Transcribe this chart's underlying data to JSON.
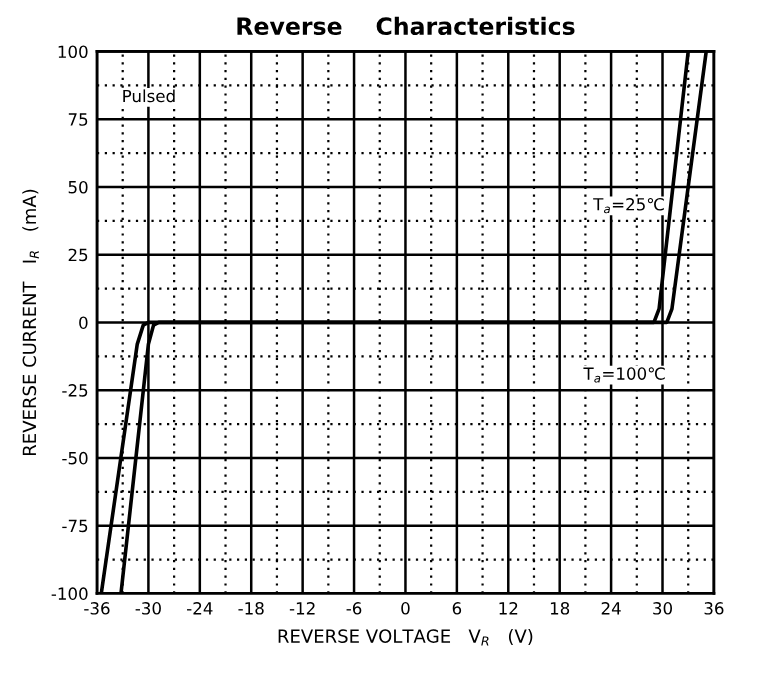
{
  "chart_data": {
    "type": "line",
    "title": "Reverse    Characteristics",
    "xlabel": "REVERSE VOLTAGE   V$_{R}$   (V)",
    "ylabel": "REVERSE CURRENT   I$_{R}$   (mA)",
    "xlim": [
      -36,
      36
    ],
    "ylim": [
      -100,
      100
    ],
    "xticks": [
      -36,
      -30,
      -24,
      -18,
      -12,
      -6,
      0,
      6,
      12,
      18,
      24,
      30,
      36
    ],
    "yticks": [
      -100,
      -75,
      -50,
      -25,
      0,
      25,
      50,
      75,
      100
    ],
    "grid": true,
    "legend": false,
    "marker": "none",
    "line_style": "solid",
    "series": [
      {
        "name": "T$_{a}$=25℃",
        "color": "#000000",
        "x": [
          -33.2,
          -30.0,
          -29.4,
          -28.8,
          29.0,
          29.6,
          33.0
        ],
        "values": [
          -100,
          -8,
          -1,
          0,
          0,
          5,
          100
        ]
      },
      {
        "name": "T$_{a}$=100℃",
        "color": "#000000",
        "x": [
          -35.5,
          -31.3,
          -30.6,
          -30.0,
          30.5,
          31.1,
          35.1
        ],
        "values": [
          -100,
          -8,
          -1,
          0,
          0,
          5,
          100
        ]
      }
    ],
    "annotations": [
      "Pulsed"
    ]
  }
}
